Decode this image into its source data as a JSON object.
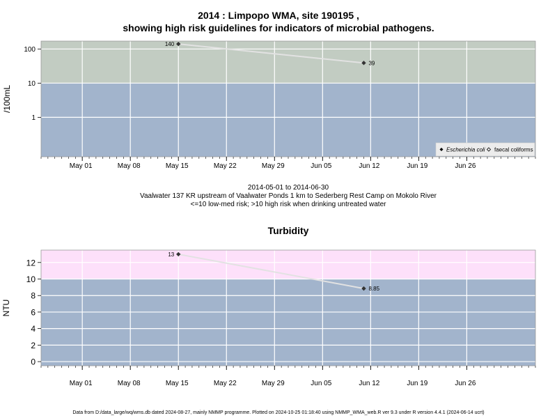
{
  "header": {
    "title_line1": "2014 : Limpopo WMA, site 190195 ,",
    "title_line2": "showing high risk guidelines for indicators of microbial pathogens."
  },
  "captions": {
    "date_range": "2014-05-01 to 2014-06-30",
    "site_description": "Vaalwater 137 KR upstream of Vaalwater Ponds 1 km to Sederberg Rest Camp on Mokolo River",
    "risk_note": "<=10 low-med risk; >10 high risk when drinking untreated water"
  },
  "footer": {
    "text": "Data from D:/data_large/wq/wms.db dated 2024-08-27, mainly NMMP programme. Plotted on 2024-10-25 01:18:40 using NMMP_WMA_web.R ver 9.3 under R version 4.4.1 (2024-06-14 ucrt)"
  },
  "colors": {
    "low_risk_band": "#a2b4cc",
    "micro_high_band": "#c2ccc2",
    "turb_high_band": "#fde0fa",
    "grid": "#ffffff",
    "line": "#e2e2e2"
  },
  "chart_data": [
    {
      "type": "line",
      "title": "",
      "ylabel": "/100mL",
      "yscale": "log10",
      "ylim": [
        0.07,
        170
      ],
      "yticks": [
        1,
        10,
        100
      ],
      "ytick_labels": [
        "1",
        "10",
        "100"
      ],
      "xlim": [
        "2014-04-25",
        "2014-07-06"
      ],
      "xticks": [
        "2014-05-01",
        "2014-05-08",
        "2014-05-15",
        "2014-05-22",
        "2014-05-29",
        "2014-06-05",
        "2014-06-12",
        "2014-06-19",
        "2014-06-26"
      ],
      "xtick_labels": [
        "May 01",
        "May 08",
        "May 15",
        "May 22",
        "May 29",
        "Jun 05",
        "Jun 12",
        "Jun 19",
        "Jun 26"
      ],
      "threshold": 10,
      "grid": true,
      "legend_position": "bottom-right",
      "legend": [
        "Escherichia coli",
        "faecal coliforms"
      ],
      "series": [
        {
          "name": "Escherichia coli",
          "marker": "filled-diamond",
          "points": [
            {
              "x": "2014-05-15",
              "y": 140,
              "label": "140"
            },
            {
              "x": "2014-06-11",
              "y": 39,
              "label": "39"
            }
          ]
        }
      ]
    },
    {
      "type": "line",
      "title": "Turbidity",
      "ylabel": "NTU",
      "yscale": "linear",
      "ylim": [
        -0.5,
        13.5
      ],
      "yticks": [
        0,
        2,
        4,
        6,
        8,
        10,
        12
      ],
      "ytick_labels": [
        "0",
        "2",
        "4",
        "6",
        "8",
        "10",
        "12"
      ],
      "xlim": [
        "2014-04-25",
        "2014-07-06"
      ],
      "xticks": [
        "2014-05-01",
        "2014-05-08",
        "2014-05-15",
        "2014-05-22",
        "2014-05-29",
        "2014-06-05",
        "2014-06-12",
        "2014-06-19",
        "2014-06-26"
      ],
      "xtick_labels": [
        "May 01",
        "May 08",
        "May 15",
        "May 22",
        "May 29",
        "Jun 05",
        "Jun 12",
        "Jun 19",
        "Jun 26"
      ],
      "threshold": 10,
      "grid": true,
      "series": [
        {
          "marker": "filled-diamond",
          "points": [
            {
              "x": "2014-05-15",
              "y": 13,
              "label": "13"
            },
            {
              "x": "2014-06-11",
              "y": 8.85,
              "label": "8.85"
            }
          ]
        }
      ]
    }
  ]
}
